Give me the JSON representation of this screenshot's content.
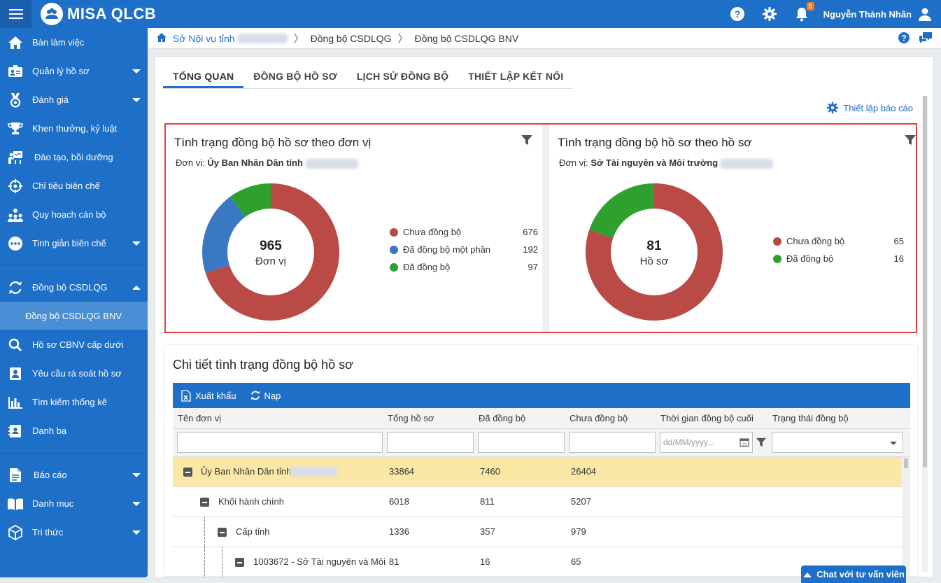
{
  "app": {
    "name": "MISA QLCB"
  },
  "topbar": {
    "user_name": "Nguyễn Thành Nhân",
    "notification_count": "5"
  },
  "sidebar": {
    "items": [
      {
        "label": "Bàn làm việc",
        "icon": "home-icon"
      },
      {
        "label": "Quản lý hồ sơ",
        "icon": "id-card-icon"
      },
      {
        "label": "Đánh giá",
        "icon": "medal-icon"
      },
      {
        "label": "Khen thưởng, kỷ luật",
        "icon": "trophy-icon"
      },
      {
        "label": "Đào tạo, bồi dưỡng",
        "icon": "teacher-icon"
      },
      {
        "label": "Chỉ tiêu biên chế",
        "icon": "target-icon"
      },
      {
        "label": "Quy hoạch cán bộ",
        "icon": "org-chart-icon"
      },
      {
        "label": "Tinh giản biên chế",
        "icon": "more-icon"
      },
      {
        "label": "Đồng bộ CSDLQG",
        "icon": "sync-icon"
      },
      {
        "label": "Hồ sơ CBNV cấp dưới",
        "icon": "search-icon"
      },
      {
        "label": "Yêu cầu rà soát hồ sơ",
        "icon": "profile-check-icon"
      },
      {
        "label": "Tìm kiếm thống kê",
        "icon": "bar-chart-icon"
      },
      {
        "label": "Danh bạ",
        "icon": "contacts-icon"
      },
      {
        "label": "Báo cáo",
        "icon": "report-icon"
      },
      {
        "label": "Danh mục",
        "icon": "book-icon"
      },
      {
        "label": "Tri thức",
        "icon": "cube-icon"
      }
    ],
    "sub_item": "Đồng bộ CSDLQG BNV"
  },
  "breadcrumb": {
    "items": [
      "Sở Nội vụ tỉnh",
      "Đồng bộ CSDLQG",
      "Đồng bộ CSDLQG BNV"
    ]
  },
  "tabs": [
    "TỔNG QUAN",
    "ĐỒNG BỘ HỒ SƠ",
    "LỊCH SỬ ĐỒNG BỘ",
    "THIẾT LẬP KẾT NỐI"
  ],
  "report_setting_label": "Thiết lập báo cáo",
  "chart_data": [
    {
      "type": "pie",
      "title": "Tình trạng đồng bộ hồ sơ theo đơn vị",
      "subtitle_label": "Đơn vị:",
      "subtitle_value": "Ủy Ban Nhân Dân tỉnh",
      "total": "965",
      "total_label": "Đơn vị",
      "categories": [
        "Chưa đồng bộ",
        "Đã đồng bộ một phần",
        "Đã đồng bộ"
      ],
      "values": [
        676,
        192,
        97
      ],
      "colors": [
        "#b94a45",
        "#3b78c4",
        "#2ea02e"
      ]
    },
    {
      "type": "pie",
      "title": "Tình trạng đồng bộ hồ sơ theo hồ sơ",
      "subtitle_label": "Đơn vị:",
      "subtitle_value": "Sở Tài nguyên và Môi trường",
      "total": "81",
      "total_label": "Hồ sơ",
      "categories": [
        "Chưa đồng bộ",
        "Đã đồng bộ"
      ],
      "values": [
        65,
        16
      ],
      "colors": [
        "#b94a45",
        "#2ea02e"
      ]
    }
  ],
  "detail": {
    "title": "Chi tiết tình trạng đồng bộ hồ sơ",
    "export_label": "Xuất khẩu",
    "reload_label": "Nạp",
    "columns": [
      "Tên đơn vị",
      "Tổng hồ sơ",
      "Đã đồng bộ",
      "Chưa đồng bộ",
      "Thời gian đồng bộ cuối",
      "Trạng thái đồng bộ"
    ],
    "date_placeholder": "dd/MM/yyyy...",
    "rows": [
      {
        "name": "Ủy Ban Nhân Dân tỉnh",
        "total": "33864",
        "synced": "7460",
        "unsynced": "26404"
      },
      {
        "name": "Khối hành chính",
        "total": "6018",
        "synced": "811",
        "unsynced": "5207"
      },
      {
        "name": "Cấp tỉnh",
        "total": "1336",
        "synced": "357",
        "unsynced": "979"
      },
      {
        "name": "1003672 - Sở Tài nguyên và Môi",
        "total": "81",
        "synced": "16",
        "unsynced": "65"
      }
    ]
  },
  "chat_label": "Chat với tư vấn viên"
}
